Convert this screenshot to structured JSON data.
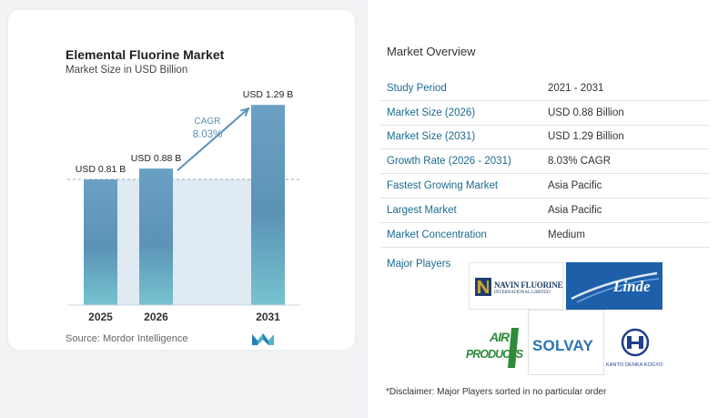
{
  "chart_data": {
    "type": "bar",
    "title": "Elemental Fluorine Market",
    "subtitle": "Market Size in USD Billion",
    "categories": [
      "2025",
      "2026",
      "2031"
    ],
    "values": [
      0.81,
      0.88,
      1.29
    ],
    "value_labels": [
      "USD 0.81 B",
      "USD 0.88 B",
      "USD 1.29 B"
    ],
    "ylim": [
      0,
      1.35
    ],
    "cagr_label": "CAGR",
    "cagr_value": "8.03%",
    "colors": {
      "bar": "#5b93b7",
      "bar_top": "#6aa0c4",
      "bar_bottom": "#76c3cf",
      "band": "#dfeaf3",
      "arrow": "#5b93b7"
    }
  },
  "source": "Source:  Mordor Intelligence",
  "market_overview": {
    "title": "Market Overview",
    "rows": [
      {
        "label": "Study Period",
        "value": "2021 - 2031"
      },
      {
        "label": "Market Size (2026)",
        "value": "USD 0.88 Billion"
      },
      {
        "label": "Market Size (2031)",
        "value": "USD 1.29 Billion"
      },
      {
        "label": "Growth Rate (2026 - 2031)",
        "value": "8.03% CAGR"
      },
      {
        "label": "Fastest Growing Market",
        "value": "Asia Pacific"
      },
      {
        "label": "Largest Market",
        "value": "Asia Pacific"
      },
      {
        "label": "Market Concentration",
        "value": "Medium"
      }
    ]
  },
  "major_players": {
    "label": "Major Players",
    "logos": {
      "navin": {
        "name": "NAVIN FLUORINE",
        "sub": "INTERNATIONAL LIMITED"
      },
      "linde": {
        "name": "Linde"
      },
      "airproducts": {
        "line1": "AIR",
        "line2": "PRODUCTS"
      },
      "solvay": {
        "name": "SOLVAY"
      },
      "kanto": {
        "name": "KANTO DENKA KOGYO"
      }
    }
  },
  "disclaimer": "*Disclaimer: Major Players sorted in no particular order"
}
